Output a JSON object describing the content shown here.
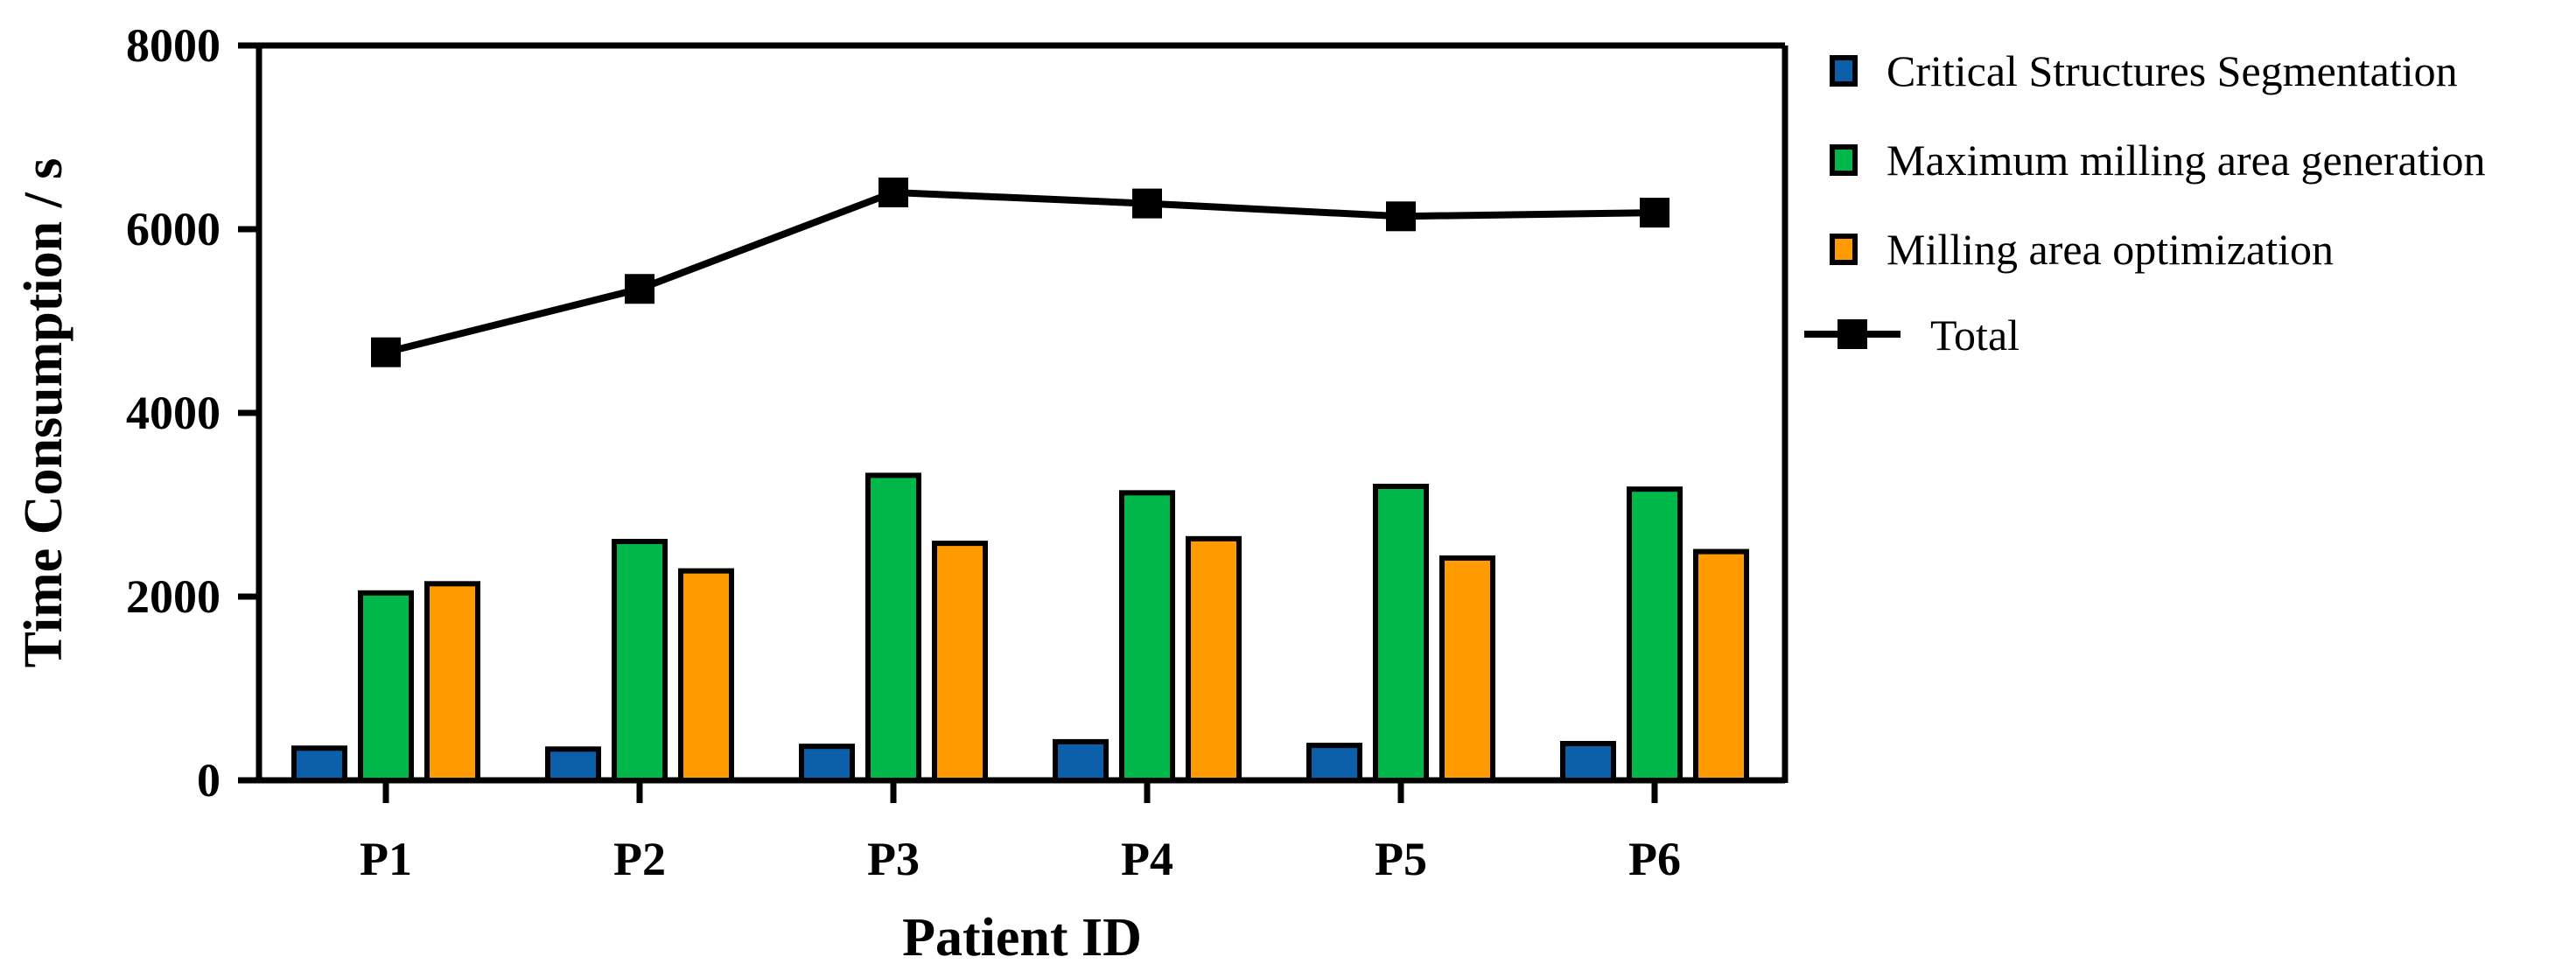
{
  "chart_data": {
    "type": "bar",
    "title": "",
    "xlabel": "Patient ID",
    "ylabel": "Time Consumption / s",
    "ylim": [
      0,
      8000
    ],
    "yticks": [
      "0",
      "2000",
      "4000",
      "6000",
      "8000"
    ],
    "categories": [
      "P1",
      "P2",
      "P3",
      "P4",
      "P5",
      "P6"
    ],
    "series": [
      {
        "name": "Critical Structures Segmentation",
        "type": "bar",
        "color": "#0b5ea8",
        "values": [
          350,
          340,
          370,
          420,
          380,
          400
        ]
      },
      {
        "name": "Maximum milling area generation",
        "type": "bar",
        "color": "#00b84a",
        "values": [
          2040,
          2600,
          3320,
          3130,
          3200,
          3170
        ]
      },
      {
        "name": "Milling area optimization",
        "type": "bar",
        "color": "#ff9b00",
        "values": [
          2140,
          2280,
          2580,
          2630,
          2420,
          2490
        ]
      },
      {
        "name": "Total",
        "type": "line",
        "color": "#000000",
        "values": [
          4660,
          5350,
          6400,
          6280,
          6140,
          6180
        ]
      }
    ],
    "legend_position": "right"
  }
}
